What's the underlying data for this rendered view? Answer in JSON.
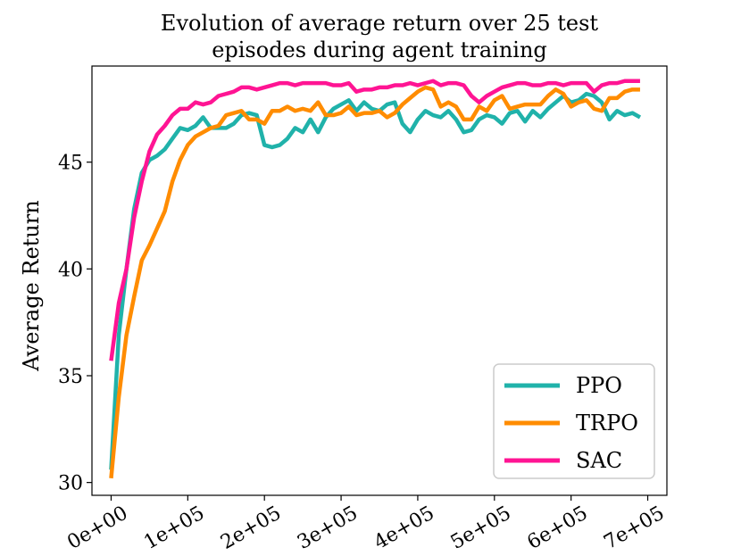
{
  "chart_data": {
    "type": "line",
    "title": "Evolution of average return over 25 test episodes during agent training",
    "title_lines": [
      "Evolution of average return over 25 test",
      "episodes during agent training"
    ],
    "xlabel": "",
    "ylabel": "Average Return",
    "xlim": [
      -25000,
      725000
    ],
    "ylim": [
      29.4,
      49.5
    ],
    "xticks": [
      0,
      100000,
      200000,
      300000,
      400000,
      500000,
      600000,
      700000
    ],
    "xtick_labels": [
      "0e+00",
      "1e+05",
      "2e+05",
      "3e+05",
      "4e+05",
      "5e+05",
      "6e+05",
      "7e+05"
    ],
    "yticks": [
      30,
      35,
      40,
      45
    ],
    "ytick_labels": [
      "30",
      "35",
      "40",
      "45"
    ],
    "grid": false,
    "legend_position": "lower-right",
    "series": [
      {
        "name": "PPO",
        "color": "#20b2aa",
        "x": [
          0,
          10000,
          20000,
          30000,
          40000,
          50000,
          60000,
          70000,
          80000,
          90000,
          100000,
          110000,
          120000,
          130000,
          140000,
          150000,
          160000,
          170000,
          180000,
          190000,
          200000,
          210000,
          220000,
          230000,
          240000,
          250000,
          260000,
          270000,
          280000,
          290000,
          300000,
          310000,
          320000,
          330000,
          340000,
          350000,
          360000,
          370000,
          380000,
          390000,
          400000,
          410000,
          420000,
          430000,
          440000,
          450000,
          460000,
          470000,
          480000,
          490000,
          500000,
          510000,
          520000,
          530000,
          540000,
          550000,
          560000,
          570000,
          580000,
          590000,
          600000,
          610000,
          620000,
          630000,
          640000,
          650000,
          660000,
          670000,
          680000,
          690000
        ],
        "values": [
          30.6,
          36.9,
          40.0,
          42.8,
          44.5,
          45.1,
          45.3,
          45.6,
          46.1,
          46.6,
          46.5,
          46.7,
          47.1,
          46.6,
          46.6,
          46.6,
          46.8,
          47.2,
          47.3,
          47.2,
          45.8,
          45.7,
          45.8,
          46.1,
          46.6,
          46.4,
          47.0,
          46.4,
          47.1,
          47.5,
          47.7,
          47.9,
          47.4,
          47.8,
          47.5,
          47.4,
          47.7,
          47.8,
          46.8,
          46.4,
          47.0,
          47.4,
          47.2,
          47.1,
          47.4,
          47.0,
          46.4,
          46.5,
          47.0,
          47.2,
          47.1,
          46.8,
          47.3,
          47.4,
          46.9,
          47.4,
          47.1,
          47.5,
          47.8,
          48.1,
          47.8,
          47.9,
          48.2,
          48.1,
          47.8,
          47.0,
          47.4,
          47.2,
          47.3,
          47.1
        ]
      },
      {
        "name": "TRPO",
        "color": "#ff8c00",
        "x": [
          0,
          10000,
          20000,
          30000,
          40000,
          50000,
          60000,
          70000,
          80000,
          90000,
          100000,
          110000,
          120000,
          130000,
          140000,
          150000,
          160000,
          170000,
          180000,
          190000,
          200000,
          210000,
          220000,
          230000,
          240000,
          250000,
          260000,
          270000,
          280000,
          290000,
          300000,
          310000,
          320000,
          330000,
          340000,
          350000,
          360000,
          370000,
          380000,
          390000,
          400000,
          410000,
          420000,
          430000,
          440000,
          450000,
          460000,
          470000,
          480000,
          490000,
          500000,
          510000,
          520000,
          530000,
          540000,
          550000,
          560000,
          570000,
          580000,
          590000,
          600000,
          610000,
          620000,
          630000,
          640000,
          650000,
          660000,
          670000,
          680000,
          690000
        ],
        "values": [
          30.2,
          34.0,
          36.9,
          38.7,
          40.4,
          41.1,
          41.9,
          42.7,
          44.1,
          45.1,
          45.8,
          46.2,
          46.4,
          46.6,
          46.7,
          47.2,
          47.3,
          47.4,
          47.0,
          47.0,
          46.8,
          47.4,
          47.4,
          47.6,
          47.4,
          47.5,
          47.4,
          47.8,
          47.2,
          47.2,
          47.3,
          47.6,
          47.2,
          47.3,
          47.3,
          47.4,
          47.1,
          47.3,
          47.7,
          48.0,
          48.3,
          48.5,
          48.4,
          47.6,
          47.8,
          47.6,
          47.0,
          47.0,
          47.6,
          47.4,
          47.9,
          48.1,
          47.5,
          47.6,
          47.7,
          47.7,
          47.7,
          48.1,
          48.4,
          48.2,
          47.6,
          47.8,
          47.9,
          47.5,
          47.4,
          48.0,
          48.0,
          48.3,
          48.4,
          48.4
        ]
      },
      {
        "name": "SAC",
        "color": "#ff1493",
        "x": [
          0,
          10000,
          20000,
          30000,
          40000,
          50000,
          60000,
          70000,
          80000,
          90000,
          100000,
          110000,
          120000,
          130000,
          140000,
          150000,
          160000,
          170000,
          180000,
          190000,
          200000,
          210000,
          220000,
          230000,
          240000,
          250000,
          260000,
          270000,
          280000,
          290000,
          300000,
          310000,
          320000,
          330000,
          340000,
          350000,
          360000,
          370000,
          380000,
          390000,
          400000,
          410000,
          420000,
          430000,
          440000,
          450000,
          460000,
          470000,
          480000,
          490000,
          500000,
          510000,
          520000,
          530000,
          540000,
          550000,
          560000,
          570000,
          580000,
          590000,
          600000,
          610000,
          620000,
          630000,
          640000,
          650000,
          660000,
          670000,
          680000,
          690000
        ],
        "values": [
          35.7,
          38.4,
          40.0,
          42.4,
          44.1,
          45.5,
          46.3,
          46.7,
          47.2,
          47.5,
          47.5,
          47.8,
          47.7,
          47.8,
          48.1,
          48.2,
          48.3,
          48.5,
          48.5,
          48.4,
          48.5,
          48.6,
          48.7,
          48.7,
          48.6,
          48.7,
          48.7,
          48.7,
          48.7,
          48.6,
          48.6,
          48.7,
          48.3,
          48.4,
          48.4,
          48.5,
          48.5,
          48.6,
          48.6,
          48.7,
          48.6,
          48.7,
          48.8,
          48.6,
          48.7,
          48.7,
          48.6,
          48.1,
          47.8,
          48.1,
          48.3,
          48.5,
          48.6,
          48.7,
          48.7,
          48.6,
          48.6,
          48.7,
          48.7,
          48.6,
          48.7,
          48.7,
          48.7,
          48.3,
          48.6,
          48.7,
          48.7,
          48.8,
          48.8,
          48.8
        ]
      }
    ]
  }
}
